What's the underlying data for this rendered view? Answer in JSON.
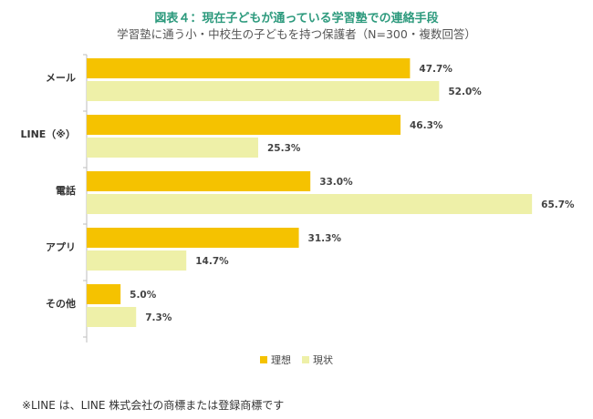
{
  "chart_data": {
    "type": "bar",
    "orientation": "horizontal",
    "title": "図表４：現在子どもが通っている学習塾での連絡手段",
    "subtitle": "学習塾に通う小・中校生の子どもを持つ保護者（N=300・複数回答）",
    "categories": [
      "メール",
      "LINE（※）",
      "電話",
      "アプリ",
      "その他"
    ],
    "series": [
      {
        "name": "理想",
        "color": "#f5c200",
        "values": [
          47.7,
          46.3,
          33.0,
          31.3,
          5.0
        ],
        "labels": [
          "47.7%",
          "46.3%",
          "33.0%",
          "31.3%",
          "5.0%"
        ]
      },
      {
        "name": "現状",
        "color": "#eef0a8",
        "values": [
          52.0,
          25.3,
          65.7,
          14.7,
          7.3
        ],
        "labels": [
          "52.0%",
          "25.3%",
          "65.7%",
          "14.7%",
          "7.3%"
        ]
      }
    ],
    "xlim": [
      0,
      66
    ],
    "grid": false,
    "legend_position": "bottom"
  },
  "footnote": "※LINE は、LINE 株式会社の商標または登録商標です"
}
